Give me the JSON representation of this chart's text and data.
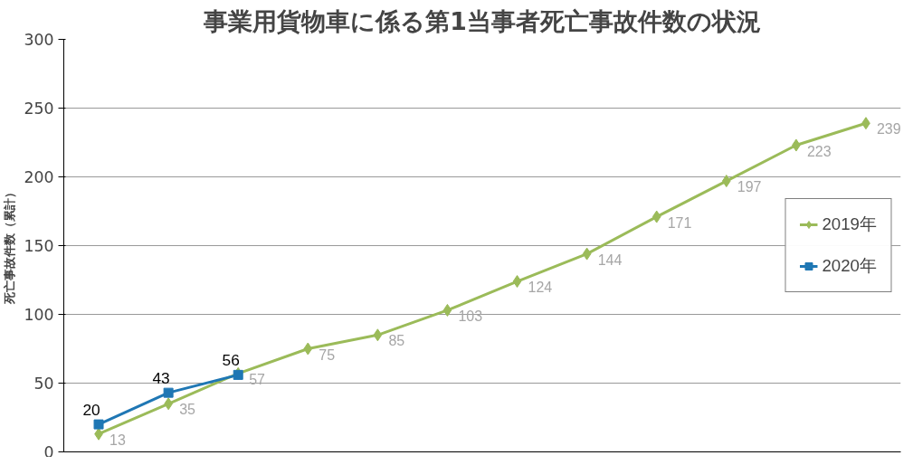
{
  "chart_data": {
    "type": "line",
    "title": "事業用貨物車に係る第1当事者死亡事故件数の状況",
    "ylabel": "死亡事故件数（累計）",
    "categories": [
      null,
      null,
      null,
      null,
      null,
      null,
      null,
      null,
      null,
      null,
      null,
      null
    ],
    "series": [
      {
        "name": "2019年",
        "color": "#9bbb59",
        "marker": "diamond",
        "values": [
          13,
          35,
          57,
          75,
          85,
          103,
          124,
          144,
          171,
          197,
          223,
          239
        ]
      },
      {
        "name": "2020年",
        "color": "#1f77b4",
        "marker": "square",
        "values": [
          20,
          43,
          56,
          null,
          null,
          null,
          null,
          null,
          null,
          null,
          null,
          null
        ]
      }
    ],
    "ylim": [
      0,
      300
    ],
    "yticks": [
      0,
      50,
      100,
      150,
      200,
      250,
      300
    ],
    "grid": "y",
    "legend": "right",
    "data_labels": true
  }
}
